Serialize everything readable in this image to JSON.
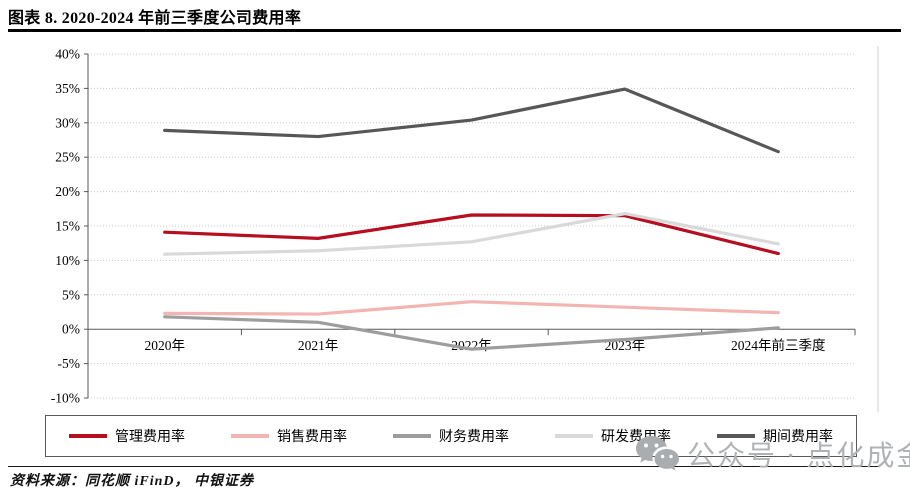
{
  "page": {
    "title": "图表 8. 2020-2024 年前三季度公司费用率",
    "source": "资料来源：同花顺 iFinD， 中银证券",
    "watermark": {
      "icon": "wechat-icon",
      "text": "公众号 · 点化成金",
      "color": "#b0b3b5"
    }
  },
  "chart_data": {
    "type": "line",
    "title": "2020-2024 年前三季度公司费用率",
    "categories": [
      "2020年",
      "2021年",
      "2022年",
      "2023年",
      "2024年前三季度"
    ],
    "series": [
      {
        "name": "管理费用率",
        "color": "#b60d1f",
        "values": [
          14.1,
          13.2,
          16.6,
          16.5,
          11.0
        ]
      },
      {
        "name": "销售费用率",
        "color": "#f2b5b2",
        "values": [
          2.3,
          2.2,
          4.0,
          3.2,
          2.4
        ]
      },
      {
        "name": "财务费用率",
        "color": "#9d9d9d",
        "values": [
          1.8,
          1.0,
          -2.9,
          -1.5,
          0.2
        ]
      },
      {
        "name": "研发费用率",
        "color": "#d9d9d9",
        "values": [
          10.9,
          11.4,
          12.7,
          16.8,
          12.4
        ]
      },
      {
        "name": "期间费用率",
        "color": "#575757",
        "values": [
          28.9,
          28.0,
          30.4,
          34.9,
          25.8
        ]
      }
    ],
    "ylim": [
      -10,
      40
    ],
    "ytick_step": 5,
    "ytick_labels": [
      "40%",
      "35%",
      "30%",
      "25%",
      "20%",
      "15%",
      "10%",
      "5%",
      "0%",
      "-5%",
      "-10%"
    ],
    "xlabel": "",
    "ylabel": "",
    "grid": "horizontal-dotted",
    "legend_position": "bottom-box",
    "axis_color": "#595959",
    "grid_color": "#c9c9c9"
  }
}
